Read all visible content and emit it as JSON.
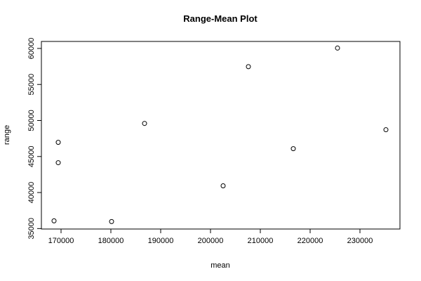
{
  "chart_data": {
    "type": "scatter",
    "title": "Range-Mean Plot",
    "x_label": "mean",
    "y_label": "range",
    "x": [
      168592,
      169437,
      169437,
      180141,
      186761,
      202535,
      207606,
      216620,
      225493,
      235211
    ],
    "values": [
      36070,
      46965,
      44144,
      35973,
      49591,
      40934,
      57471,
      46089,
      60050,
      48716
    ],
    "color": "#000000",
    "xlim": [
      166056,
      238028
    ],
    "ylim": [
      34936,
      60970
    ],
    "xticks": [
      170000,
      180000,
      190000,
      200000,
      210000,
      220000,
      230000
    ],
    "yticks": [
      35000,
      40000,
      45000,
      50000,
      55000,
      60000
    ]
  }
}
